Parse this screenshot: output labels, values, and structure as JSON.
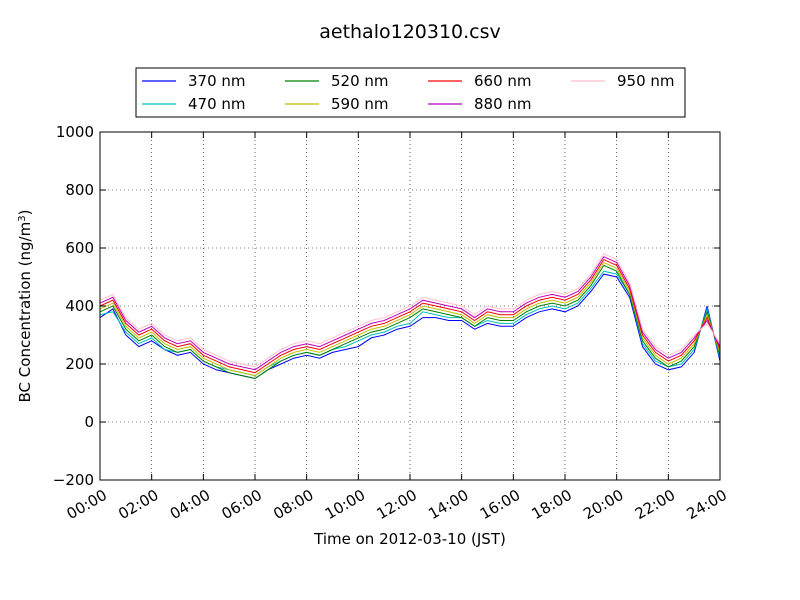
{
  "chart_data": {
    "type": "line",
    "title": "aethalo120310.csv",
    "xlabel": "Time on 2012-03-10 (JST)",
    "ylabel": "BC Concentration (ng/m",
    "ylabel_sup": "3",
    "ylabel_tail": ")",
    "xlim": [
      0,
      24
    ],
    "ylim": [
      -200,
      1000
    ],
    "grid": true,
    "legend_position": "top, above plot",
    "x_ticks": [
      0,
      2,
      4,
      6,
      8,
      10,
      12,
      14,
      16,
      18,
      20,
      22,
      24
    ],
    "x_tick_labels": [
      "00:00",
      "02:00",
      "04:00",
      "06:00",
      "08:00",
      "10:00",
      "12:00",
      "14:00",
      "16:00",
      "18:00",
      "20:00",
      "22:00",
      "24:00"
    ],
    "y_ticks": [
      -200,
      0,
      200,
      400,
      600,
      800,
      1000
    ],
    "y_tick_labels": [
      "−200",
      "0",
      "200",
      "400",
      "600",
      "800",
      "1000"
    ],
    "x_unit": "hours since 00:00",
    "series": [
      {
        "name": "370 nm",
        "color": "#0000ff",
        "x": [
          0,
          0.5,
          1,
          1.5,
          2,
          2.5,
          3,
          3.5,
          4,
          4.5,
          5,
          5.5,
          6,
          6.5,
          7,
          7.5,
          8,
          8.5,
          9,
          9.5,
          10,
          10.5,
          11,
          11.5,
          12,
          12.5,
          13,
          13.5,
          14,
          14.5,
          15,
          15.5,
          16,
          16.5,
          17,
          17.5,
          18,
          18.5,
          19,
          19.5,
          20,
          20.5,
          21,
          21.5,
          22,
          22.5,
          23,
          23.5,
          24
        ],
        "values": [
          360,
          390,
          300,
          260,
          280,
          250,
          230,
          240,
          200,
          180,
          170,
          160,
          150,
          180,
          200,
          220,
          230,
          220,
          240,
          250,
          260,
          290,
          300,
          320,
          330,
          360,
          360,
          350,
          350,
          320,
          340,
          330,
          330,
          360,
          380,
          390,
          380,
          400,
          450,
          510,
          500,
          430,
          260,
          200,
          180,
          190,
          240,
          400,
          210
        ]
      },
      {
        "name": "470 nm",
        "color": "#00bfbf",
        "x": [
          0,
          0.5,
          1,
          1.5,
          2,
          2.5,
          3,
          3.5,
          4,
          4.5,
          5,
          5.5,
          6,
          6.5,
          7,
          7.5,
          8,
          8.5,
          9,
          9.5,
          10,
          10.5,
          11,
          11.5,
          12,
          12.5,
          13,
          13.5,
          14,
          14.5,
          15,
          15.5,
          16,
          16.5,
          17,
          17.5,
          18,
          18.5,
          19,
          19.5,
          20,
          20.5,
          21,
          21.5,
          22,
          22.5,
          23,
          23.5,
          24
        ],
        "values": [
          370,
          380,
          310,
          270,
          290,
          250,
          240,
          250,
          210,
          190,
          180,
          170,
          160,
          190,
          210,
          230,
          240,
          230,
          250,
          260,
          280,
          300,
          310,
          330,
          340,
          380,
          370,
          360,
          360,
          330,
          350,
          340,
          340,
          370,
          390,
          400,
          390,
          410,
          460,
          520,
          510,
          440,
          270,
          210,
          190,
          200,
          250,
          390,
          220
        ]
      },
      {
        "name": "520 nm",
        "color": "#008000",
        "x": [
          0,
          0.5,
          1,
          1.5,
          2,
          2.5,
          3,
          3.5,
          4,
          4.5,
          5,
          5.5,
          6,
          6.5,
          7,
          7.5,
          8,
          8.5,
          9,
          9.5,
          10,
          10.5,
          11,
          11.5,
          12,
          12.5,
          13,
          13.5,
          14,
          14.5,
          15,
          15.5,
          16,
          16.5,
          17,
          17.5,
          18,
          18.5,
          19,
          19.5,
          20,
          20.5,
          21,
          21.5,
          22,
          22.5,
          23,
          23.5,
          24
        ],
        "values": [
          380,
          400,
          320,
          280,
          300,
          260,
          240,
          250,
          210,
          190,
          170,
          160,
          150,
          180,
          210,
          230,
          240,
          230,
          250,
          270,
          290,
          310,
          320,
          340,
          360,
          390,
          380,
          370,
          360,
          330,
          360,
          350,
          350,
          380,
          400,
          410,
          400,
          420,
          470,
          540,
          520,
          440,
          280,
          220,
          190,
          210,
          260,
          380,
          230
        ]
      },
      {
        "name": "590 nm",
        "color": "#bfbf00",
        "x": [
          0,
          0.5,
          1,
          1.5,
          2,
          2.5,
          3,
          3.5,
          4,
          4.5,
          5,
          5.5,
          6,
          6.5,
          7,
          7.5,
          8,
          8.5,
          9,
          9.5,
          10,
          10.5,
          11,
          11.5,
          12,
          12.5,
          13,
          13.5,
          14,
          14.5,
          15,
          15.5,
          16,
          16.5,
          17,
          17.5,
          18,
          18.5,
          19,
          19.5,
          20,
          20.5,
          21,
          21.5,
          22,
          22.5,
          23,
          23.5,
          24
        ],
        "values": [
          390,
          410,
          330,
          290,
          310,
          270,
          250,
          260,
          220,
          200,
          180,
          170,
          160,
          190,
          220,
          240,
          250,
          240,
          260,
          280,
          300,
          320,
          330,
          350,
          370,
          400,
          390,
          380,
          370,
          340,
          370,
          360,
          360,
          390,
          410,
          420,
          410,
          430,
          480,
          550,
          530,
          450,
          290,
          230,
          200,
          220,
          270,
          370,
          240
        ]
      },
      {
        "name": "660 nm",
        "color": "#ff0000",
        "x": [
          0,
          0.5,
          1,
          1.5,
          2,
          2.5,
          3,
          3.5,
          4,
          4.5,
          5,
          5.5,
          6,
          6.5,
          7,
          7.5,
          8,
          8.5,
          9,
          9.5,
          10,
          10.5,
          11,
          11.5,
          12,
          12.5,
          13,
          13.5,
          14,
          14.5,
          15,
          15.5,
          16,
          16.5,
          17,
          17.5,
          18,
          18.5,
          19,
          19.5,
          20,
          20.5,
          21,
          21.5,
          22,
          22.5,
          23,
          23.5,
          24
        ],
        "values": [
          400,
          420,
          340,
          300,
          320,
          280,
          260,
          270,
          230,
          210,
          190,
          180,
          170,
          200,
          230,
          250,
          260,
          250,
          270,
          290,
          310,
          330,
          340,
          360,
          380,
          410,
          400,
          390,
          380,
          350,
          380,
          370,
          370,
          400,
          420,
          430,
          420,
          440,
          490,
          560,
          540,
          460,
          300,
          240,
          210,
          230,
          280,
          360,
          250
        ]
      },
      {
        "name": "880 nm",
        "color": "#bf00bf",
        "x": [
          0,
          0.5,
          1,
          1.5,
          2,
          2.5,
          3,
          3.5,
          4,
          4.5,
          5,
          5.5,
          6,
          6.5,
          7,
          7.5,
          8,
          8.5,
          9,
          9.5,
          10,
          10.5,
          11,
          11.5,
          12,
          12.5,
          13,
          13.5,
          14,
          14.5,
          15,
          15.5,
          16,
          16.5,
          17,
          17.5,
          18,
          18.5,
          19,
          19.5,
          20,
          20.5,
          21,
          21.5,
          22,
          22.5,
          23,
          23.5,
          24
        ],
        "values": [
          410,
          430,
          350,
          310,
          330,
          290,
          270,
          280,
          240,
          220,
          200,
          190,
          180,
          210,
          240,
          260,
          270,
          260,
          280,
          300,
          320,
          340,
          350,
          370,
          390,
          420,
          410,
          400,
          390,
          360,
          390,
          380,
          380,
          410,
          430,
          440,
          430,
          450,
          500,
          570,
          550,
          470,
          310,
          250,
          220,
          240,
          290,
          350,
          260
        ]
      },
      {
        "name": "950 nm",
        "color": "#ffc0cb",
        "x": [
          0,
          0.5,
          1,
          1.5,
          2,
          2.5,
          3,
          3.5,
          4,
          4.5,
          5,
          5.5,
          6,
          6.5,
          7,
          7.5,
          8,
          8.5,
          9,
          9.5,
          10,
          10.5,
          11,
          11.5,
          12,
          12.5,
          13,
          13.5,
          14,
          14.5,
          15,
          15.5,
          16,
          16.5,
          17,
          17.5,
          18,
          18.5,
          19,
          19.5,
          20,
          20.5,
          21,
          21.5,
          22,
          22.5,
          23,
          23.5,
          24
        ],
        "values": [
          420,
          440,
          360,
          320,
          340,
          300,
          280,
          290,
          250,
          230,
          210,
          200,
          190,
          220,
          250,
          270,
          280,
          270,
          290,
          310,
          330,
          350,
          360,
          380,
          400,
          430,
          420,
          410,
          400,
          370,
          400,
          390,
          390,
          420,
          440,
          450,
          440,
          460,
          510,
          580,
          560,
          480,
          320,
          260,
          230,
          250,
          300,
          340,
          270
        ]
      }
    ]
  }
}
